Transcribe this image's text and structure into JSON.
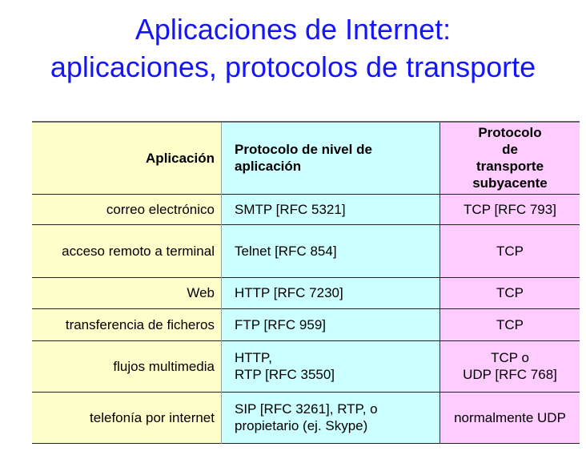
{
  "title": {
    "line1": "Aplicaciones de Internet:",
    "line2": "aplicaciones, protocolos de transporte"
  },
  "table": {
    "headers": [
      "Aplicación",
      "Protocolo de nivel de aplicación",
      "Protocolo de transporte subyacente"
    ],
    "rows": [
      [
        "correo electrónico",
        "SMTP [RFC 5321]",
        "TCP [RFC 793]"
      ],
      [
        "acceso remoto a terminal",
        "Telnet [RFC 854]",
        "TCP"
      ],
      [
        "Web",
        "HTTP [RFC 7230]",
        "TCP"
      ],
      [
        "transferencia de ficheros",
        "FTP [RFC 959]",
        "TCP"
      ],
      [
        "flujos multimedia",
        "HTTP,\nRTP [RFC 3550]",
        "TCP o\nUDP [RFC 768]"
      ],
      [
        "telefonía por internet",
        "SIP [RFC 3261], RTP, o propietario (ej. Skype)",
        "normalmente UDP"
      ]
    ],
    "colors": {
      "col1": "#ffffcc",
      "col2": "#ccffff",
      "col3": "#ffccff",
      "title": "#1414ff"
    }
  }
}
